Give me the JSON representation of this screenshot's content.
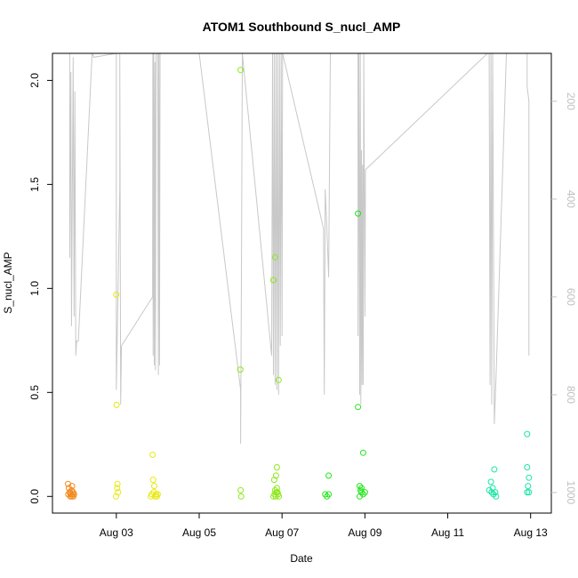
{
  "chart_data": {
    "type": "scatter",
    "title": "ATOM1 Southbound S_nucl_AMP",
    "xlabel": "Date",
    "ylabel": "S_nucl_AMP",
    "xlim": [
      "2015-08-01T11:00",
      "2015-08-13T12:00"
    ],
    "ylim": [
      -0.08,
      2.13
    ],
    "x_ticks": [
      "2015-08-03",
      "2015-08-05",
      "2015-08-07",
      "2015-08-09",
      "2015-08-11",
      "2015-08-13"
    ],
    "x_tick_labels": [
      "Aug 03",
      "Aug 05",
      "Aug 07",
      "Aug 09",
      "Aug 11",
      "Aug 13"
    ],
    "y_ticks": [
      0.0,
      0.5,
      1.0,
      1.5,
      2.0
    ],
    "y_tick_labels": [
      "0.0",
      "0.5",
      "1.0",
      "1.5",
      "2.0"
    ],
    "right_axis": {
      "ticks": [
        200,
        400,
        600,
        800,
        1000
      ],
      "tick_labels": [
        "200",
        "400",
        "600",
        "800",
        "1000"
      ],
      "reversed": true,
      "range": [
        102,
        1042
      ],
      "color": "#c0c0c0"
    },
    "grid": false,
    "point_style": "open-circle",
    "series": [
      {
        "color": "#f28a1e",
        "points": [
          [
            "2015-08-01T20:00",
            0.06
          ],
          [
            "2015-08-01T20:30",
            0.04
          ],
          [
            "2015-08-01T21:00",
            0.02
          ],
          [
            "2015-08-01T21:20",
            0.0
          ],
          [
            "2015-08-01T21:40",
            0.01
          ],
          [
            "2015-08-01T22:00",
            0.03
          ],
          [
            "2015-08-01T22:20",
            0.05
          ],
          [
            "2015-08-01T22:40",
            0.01
          ],
          [
            "2015-08-01T23:00",
            0.02
          ],
          [
            "2015-08-01T23:30",
            0.01
          ],
          [
            "2015-08-01T20:10",
            0.01
          ],
          [
            "2015-08-01T21:10",
            0.02
          ],
          [
            "2015-08-01T22:10",
            0.0
          ],
          [
            "2015-08-01T23:10",
            0.0
          ]
        ]
      },
      {
        "color": "#e8e810",
        "points": [
          [
            "2015-08-03T00:00",
            0.97
          ],
          [
            "2015-08-03T00:10",
            0.44
          ],
          [
            "2015-08-03T00:40",
            0.06
          ],
          [
            "2015-08-02T23:50",
            0.0
          ],
          [
            "2015-08-03T01:00",
            0.02
          ],
          [
            "2015-08-03T00:30",
            0.04
          ],
          [
            "2015-08-03T21:00",
            0.2
          ],
          [
            "2015-08-03T21:20",
            0.08
          ],
          [
            "2015-08-03T20:00",
            0.0
          ],
          [
            "2015-08-03T20:30",
            0.01
          ],
          [
            "2015-08-03T21:40",
            0.02
          ],
          [
            "2015-08-03T22:00",
            0.05
          ],
          [
            "2015-08-03T22:30",
            0.0
          ],
          [
            "2015-08-03T23:00",
            0.01
          ],
          [
            "2015-08-03T23:30",
            0.0
          ],
          [
            "2015-08-04T00:00",
            0.01
          ]
        ]
      },
      {
        "color": "#8ce81a",
        "points": [
          [
            "2015-08-06T00:00",
            2.05
          ],
          [
            "2015-08-05T23:50",
            0.61
          ],
          [
            "2015-08-06T00:00",
            0.03
          ],
          [
            "2015-08-06T00:20",
            0.0
          ],
          [
            "2015-08-06T19:00",
            1.04
          ],
          [
            "2015-08-06T20:00",
            1.15
          ],
          [
            "2015-08-06T22:00",
            0.56
          ],
          [
            "2015-08-06T21:00",
            0.14
          ],
          [
            "2015-08-06T20:30",
            0.1
          ],
          [
            "2015-08-06T19:30",
            0.08
          ],
          [
            "2015-08-06T20:00",
            0.03
          ],
          [
            "2015-08-06T21:20",
            0.02
          ],
          [
            "2015-08-06T19:00",
            0.0
          ],
          [
            "2015-08-06T19:40",
            0.01
          ],
          [
            "2015-08-06T20:20",
            0.0
          ],
          [
            "2015-08-06T21:40",
            0.01
          ],
          [
            "2015-08-06T22:10",
            0.0
          ],
          [
            "2015-08-06T20:40",
            0.02
          ],
          [
            "2015-08-06T21:00",
            0.04
          ]
        ]
      },
      {
        "color": "#22e61c",
        "points": [
          [
            "2015-08-08T03:00",
            0.1
          ],
          [
            "2015-08-08T01:00",
            0.01
          ],
          [
            "2015-08-08T02:00",
            0.0
          ],
          [
            "2015-08-08T03:00",
            0.01
          ],
          [
            "2015-08-08T20:00",
            1.36
          ],
          [
            "2015-08-08T20:00",
            0.43
          ],
          [
            "2015-08-08T23:00",
            0.21
          ],
          [
            "2015-08-08T21:00",
            0.05
          ],
          [
            "2015-08-08T22:00",
            0.04
          ],
          [
            "2015-08-08T21:00",
            0.0
          ],
          [
            "2015-08-08T22:00",
            0.02
          ],
          [
            "2015-08-08T23:00",
            0.01
          ],
          [
            "2015-08-09T00:00",
            0.02
          ],
          [
            "2015-08-08T21:30",
            0.03
          ]
        ]
      },
      {
        "color": "#18e6a6",
        "points": [
          [
            "2015-08-12T01:00",
            0.07
          ],
          [
            "2015-08-12T02:00",
            0.04
          ],
          [
            "2015-08-12T03:00",
            0.13
          ],
          [
            "2015-08-12T00:00",
            0.03
          ],
          [
            "2015-08-12T01:30",
            0.02
          ],
          [
            "2015-08-12T02:30",
            0.01
          ],
          [
            "2015-08-12T03:30",
            0.02
          ],
          [
            "2015-08-12T04:00",
            0.0
          ],
          [
            "2015-08-12T22:00",
            0.3
          ],
          [
            "2015-08-12T22:00",
            0.14
          ],
          [
            "2015-08-12T23:00",
            0.09
          ],
          [
            "2015-08-12T22:30",
            0.05
          ],
          [
            "2015-08-12T23:00",
            0.02
          ],
          [
            "2015-08-12T22:00",
            0.02
          ]
        ]
      }
    ],
    "depth_track": {
      "color": "#c8c8c8",
      "points": [
        [
          "2015-08-01T21:00",
          100
        ],
        [
          "2015-08-01T21:00",
          520
        ],
        [
          "2015-08-01T21:40",
          140
        ],
        [
          "2015-08-01T22:00",
          660
        ],
        [
          "2015-08-01T23:00",
          110
        ],
        [
          "2015-08-01T23:30",
          640
        ],
        [
          "2015-08-02T00:00",
          180
        ],
        [
          "2015-08-02T00:10",
          400
        ],
        [
          "2015-08-02T00:30",
          720
        ],
        [
          "2015-08-02T01:00",
          690
        ],
        [
          "2015-08-02T02:00",
          690
        ],
        [
          "2015-08-02T10:00",
          100
        ],
        [
          "2015-08-02T11:00",
          110
        ],
        [
          "2015-08-03T00:00",
          100
        ],
        [
          "2015-08-03T00:00",
          790
        ],
        [
          "2015-08-03T02:00",
          380
        ],
        [
          "2015-08-03T02:00",
          100
        ],
        [
          "2015-08-03T02:30",
          820
        ],
        [
          "2015-08-03T03:00",
          700
        ],
        [
          "2015-08-03T21:00",
          600
        ],
        [
          "2015-08-03T21:10",
          100
        ],
        [
          "2015-08-03T21:20",
          720
        ],
        [
          "2015-08-03T21:40",
          100
        ],
        [
          "2015-08-03T22:00",
          740
        ],
        [
          "2015-08-03T22:20",
          120
        ],
        [
          "2015-08-03T22:40",
          750
        ],
        [
          "2015-08-03T23:00",
          100
        ],
        [
          "2015-08-04T00:00",
          100
        ],
        [
          "2015-08-04T00:20",
          760
        ],
        [
          "2015-08-04T00:40",
          100
        ],
        [
          "2015-08-04T01:00",
          740
        ],
        [
          "2015-08-04T01:20",
          100
        ],
        [
          "2015-08-05T00:00",
          100
        ],
        [
          "2015-08-06T00:00",
          790
        ],
        [
          "2015-08-06T00:00",
          900
        ],
        [
          "2015-08-06T00:30",
          520
        ],
        [
          "2015-08-06T01:00",
          100
        ],
        [
          "2015-08-06T18:00",
          720
        ],
        [
          "2015-08-06T18:30",
          100
        ],
        [
          "2015-08-06T19:00",
          760
        ],
        [
          "2015-08-06T19:30",
          100
        ],
        [
          "2015-08-06T20:00",
          780
        ],
        [
          "2015-08-06T20:30",
          100
        ],
        [
          "2015-08-06T21:00",
          790
        ],
        [
          "2015-08-06T21:30",
          100
        ],
        [
          "2015-08-06T22:00",
          800
        ],
        [
          "2015-08-06T22:30",
          100
        ],
        [
          "2015-08-06T23:00",
          700
        ],
        [
          "2015-08-06T23:30",
          100
        ],
        [
          "2015-08-07T00:00",
          680
        ],
        [
          "2015-08-07T00:20",
          100
        ],
        [
          "2015-08-08T00:00",
          460
        ],
        [
          "2015-08-08T00:30",
          800
        ],
        [
          "2015-08-08T01:00",
          380
        ],
        [
          "2015-08-08T02:00",
          460
        ],
        [
          "2015-08-08T03:00",
          560
        ],
        [
          "2015-08-08T04:00",
          100
        ],
        [
          "2015-08-08T20:00",
          100
        ],
        [
          "2015-08-08T20:00",
          680
        ],
        [
          "2015-08-08T20:30",
          100
        ],
        [
          "2015-08-08T21:00",
          800
        ],
        [
          "2015-08-08T21:20",
          100
        ],
        [
          "2015-08-08T21:40",
          820
        ],
        [
          "2015-08-08T22:00",
          300
        ],
        [
          "2015-08-08T22:20",
          780
        ],
        [
          "2015-08-08T22:40",
          330
        ],
        [
          "2015-08-08T23:00",
          780
        ],
        [
          "2015-08-08T23:20",
          100
        ],
        [
          "2015-08-09T00:00",
          640
        ],
        [
          "2015-08-09T00:20",
          340
        ],
        [
          "2015-08-11T23:00",
          100
        ],
        [
          "2015-08-12T00:00",
          100
        ],
        [
          "2015-08-12T00:30",
          780
        ],
        [
          "2015-08-12T01:00",
          100
        ],
        [
          "2015-08-12T01:30",
          820
        ],
        [
          "2015-08-12T02:00",
          100
        ],
        [
          "2015-08-12T03:00",
          860
        ],
        [
          "2015-08-12T04:00",
          760
        ],
        [
          "2015-08-12T10:00",
          100
        ],
        [
          "2015-08-12T22:00",
          100
        ],
        [
          "2015-08-12T22:00",
          170
        ],
        [
          "2015-08-12T23:00",
          200
        ],
        [
          "2015-08-12T23:00",
          720
        ]
      ]
    }
  }
}
